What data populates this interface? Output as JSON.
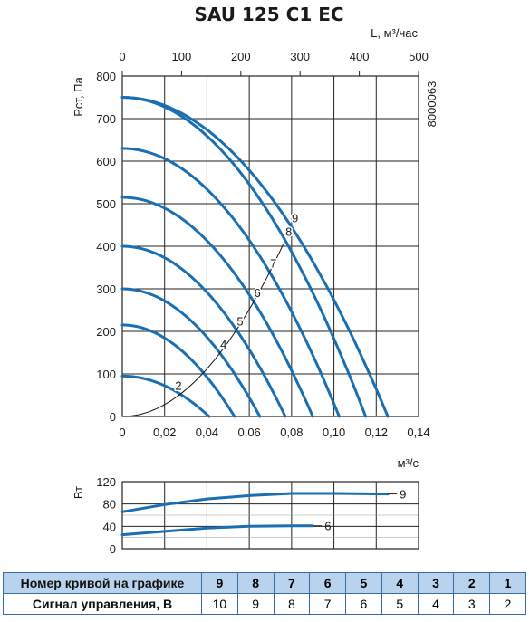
{
  "chart_data": [
    {
      "type": "line",
      "title": "SAU 125 C1 EC",
      "code": "8000063",
      "xlabel": "м³/с",
      "xlabel_top": "L, м³/час",
      "ylabel": "Рст, Па",
      "xlim": [
        0,
        0.14
      ],
      "ylim": [
        0,
        800
      ],
      "xlim_top": [
        0,
        500
      ],
      "x_ticks": [
        "0",
        "0,02",
        "0,04",
        "0,06",
        "0,08",
        "0,10",
        "0,12",
        "0,14"
      ],
      "x_tick_values": [
        0,
        0.02,
        0.04,
        0.06,
        0.08,
        0.1,
        0.12,
        0.14
      ],
      "x_top_ticks": [
        "0",
        "100",
        "200",
        "300",
        "400",
        "500"
      ],
      "x_top_tick_values": [
        0,
        100,
        200,
        300,
        400,
        500
      ],
      "y_ticks": [
        "0",
        "100",
        "200",
        "300",
        "400",
        "500",
        "600",
        "700",
        "800"
      ],
      "y_tick_values": [
        0,
        100,
        200,
        300,
        400,
        500,
        600,
        700,
        800
      ],
      "grid": true,
      "series": [
        {
          "name": "2",
          "p0": 95,
          "qmax": 0.041
        },
        {
          "name": "3",
          "p0": 215,
          "qmax": 0.053
        },
        {
          "name": "4",
          "p0": 300,
          "qmax": 0.065
        },
        {
          "name": "5",
          "p0": 400,
          "qmax": 0.077
        },
        {
          "name": "6",
          "p0": 515,
          "qmax": 0.09
        },
        {
          "name": "7",
          "p0": 630,
          "qmax": 0.1025
        },
        {
          "name": "8",
          "p0": 750,
          "qmax": 0.115
        },
        {
          "name": "9",
          "p0": 750,
          "qmax": 0.1255
        }
      ],
      "visible_curve_labels": [
        "2",
        "4",
        "5",
        "6",
        "7",
        "8",
        "9"
      ],
      "system_curve": {
        "x": [
          0,
          0.02,
          0.04,
          0.06,
          0.076
        ],
        "y": [
          0,
          28,
          112,
          252,
          404
        ]
      },
      "curve_color": "#1a6fb3",
      "system_color": "#111111"
    },
    {
      "type": "line",
      "ylabel": "Вт",
      "xlim": [
        0,
        0.14
      ],
      "ylim": [
        0,
        120
      ],
      "y_ticks": [
        "0",
        "40",
        "80",
        "120"
      ],
      "y_tick_values": [
        0,
        40,
        80,
        120
      ],
      "grid": true,
      "series": [
        {
          "name": "9",
          "x": [
            0,
            0.02,
            0.04,
            0.06,
            0.08,
            0.1,
            0.1255
          ],
          "y": [
            66,
            79,
            89,
            95,
            99,
            99,
            98
          ]
        },
        {
          "name": "6",
          "x": [
            0,
            0.02,
            0.04,
            0.06,
            0.08,
            0.09
          ],
          "y": [
            25,
            31,
            37,
            40,
            41,
            41
          ]
        }
      ],
      "curve_color": "#1a6fb3"
    }
  ],
  "table": {
    "row1_label": "Номер кривой на графике",
    "row1": [
      "9",
      "8",
      "7",
      "6",
      "5",
      "4",
      "3",
      "2",
      "1"
    ],
    "row2_label": "Сигнал управления, В",
    "row2": [
      "10",
      "9",
      "8",
      "7",
      "6",
      "5",
      "4",
      "3",
      "2"
    ]
  }
}
